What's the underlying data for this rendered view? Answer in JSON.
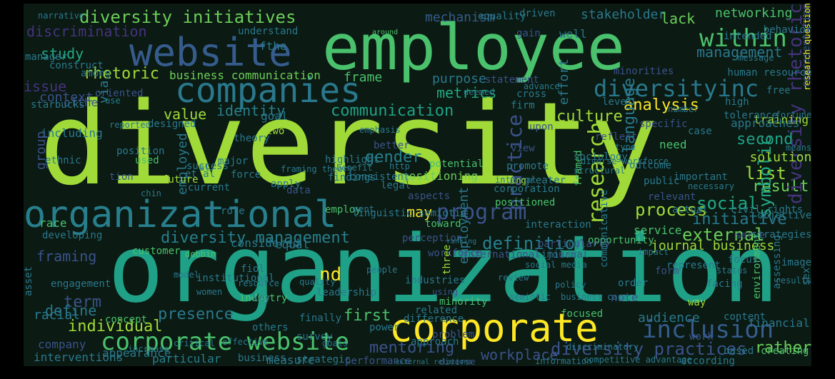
{
  "words": [
    {
      "text": "diversity",
      "color": "#a0da39"
    },
    {
      "text": "organization",
      "color": "#1fa187"
    },
    {
      "text": "employee",
      "color": "#4ac16d"
    },
    {
      "text": "organizational",
      "color": "#277f8e"
    },
    {
      "text": "website",
      "color": "#365c8d"
    },
    {
      "text": "companies",
      "color": "#2a788e"
    },
    {
      "text": "corporate",
      "color": "#fde725"
    },
    {
      "text": "corporate website",
      "color": "#4ac16d"
    },
    {
      "text": "diversity initiatives",
      "color": "#6ccd5a"
    },
    {
      "text": "within",
      "color": "#4ac16d"
    },
    {
      "text": "diversityinc",
      "color": "#2a788e"
    },
    {
      "text": "program",
      "color": "#3b528b"
    },
    {
      "text": "inclusion",
      "color": "#365c8d"
    },
    {
      "text": "diversity management",
      "color": "#277f8e"
    },
    {
      "text": "diversity practices",
      "color": "#3b528b"
    },
    {
      "text": "rhetoric",
      "color": "#a0da39"
    },
    {
      "text": "communication",
      "color": "#1fa187"
    },
    {
      "text": "culture",
      "color": "#a0da39"
    },
    {
      "text": "analysis",
      "color": "#fde725"
    },
    {
      "text": "discrimination",
      "color": "#46337e"
    },
    {
      "text": "study",
      "color": "#22a884"
    },
    {
      "text": "management",
      "color": "#2a788e"
    },
    {
      "text": "networking",
      "color": "#4ac16d"
    },
    {
      "text": "stakeholder",
      "color": "#2a788e"
    },
    {
      "text": "mechanism",
      "color": "#365c8d"
    },
    {
      "text": "lack",
      "color": "#6ccd5a"
    },
    {
      "text": "process",
      "color": "#a0da39"
    },
    {
      "text": "social",
      "color": "#22a884"
    },
    {
      "text": "external",
      "color": "#6ccd5a"
    },
    {
      "text": "list",
      "color": "#a0da39"
    },
    {
      "text": "result",
      "color": "#6ccd5a"
    },
    {
      "text": "second",
      "color": "#1fa187"
    },
    {
      "text": "initiative",
      "color": "#2a788e"
    },
    {
      "text": "definition",
      "color": "#277f8e"
    },
    {
      "text": "journal business",
      "color": "#a0da39"
    },
    {
      "text": "gender",
      "color": "#277f8e"
    },
    {
      "text": "framing",
      "color": "#3b528b"
    },
    {
      "text": "presence",
      "color": "#2a788e"
    },
    {
      "text": "individual",
      "color": "#a0da39"
    },
    {
      "text": "mentoring",
      "color": "#3b528b"
    },
    {
      "text": "first",
      "color": "#4ac16d"
    },
    {
      "text": "term",
      "color": "#3b528b"
    },
    {
      "text": "define",
      "color": "#2a788e"
    },
    {
      "text": "audience",
      "color": "#2a788e"
    },
    {
      "text": "workplace",
      "color": "#3b528b"
    },
    {
      "text": "rather",
      "color": "#6ccd5a"
    },
    {
      "text": "interventions",
      "color": "#2a788e"
    },
    {
      "text": "business communication",
      "color": "#6ccd5a"
    },
    {
      "text": "value",
      "color": "#a0da39"
    },
    {
      "text": "identity",
      "color": "#277f8e"
    },
    {
      "text": "metrics",
      "color": "#22a884"
    },
    {
      "text": "frame",
      "color": "#4ac16d"
    },
    {
      "text": "purpose",
      "color": "#2a788e"
    },
    {
      "text": "issue",
      "color": "#46337e"
    },
    {
      "text": "context",
      "color": "#3b528b"
    },
    {
      "text": "research",
      "color": "#a0da39"
    },
    {
      "text": "symbolic",
      "color": "#22a884"
    },
    {
      "text": "practice",
      "color": "#3b528b"
    },
    {
      "text": "diversity rhetoric",
      "color": "#46337e"
    },
    {
      "text": "may",
      "color": "#fde725"
    },
    {
      "text": "solution",
      "color": "#a0da39"
    },
    {
      "text": "training",
      "color": "#a0da39"
    },
    {
      "text": "approaches",
      "color": "#2a788e"
    },
    {
      "text": "positioning",
      "color": "#6ccd5a"
    },
    {
      "text": "including",
      "color": "#2a788e"
    },
    {
      "text": "group",
      "color": "#3b528b"
    },
    {
      "text": "designed",
      "color": "#2a788e"
    },
    {
      "text": "employed",
      "color": "#2a788e"
    },
    {
      "text": "potential",
      "color": "#4ac16d"
    },
    {
      "text": "considered",
      "color": "#2a788e"
    },
    {
      "text": "toward",
      "color": "#4ac16d"
    },
    {
      "text": "equal",
      "color": "#2a788e"
    },
    {
      "text": "nd",
      "color": "#fde725"
    },
    {
      "text": "industries",
      "color": "#2a788e"
    },
    {
      "text": "customer",
      "color": "#4ac16d"
    },
    {
      "text": "tolerance",
      "color": "#2a788e"
    },
    {
      "text": "company",
      "color": "#3b528b"
    },
    {
      "text": "appearance",
      "color": "#2a788e"
    },
    {
      "text": "engagement",
      "color": "#2a788e"
    },
    {
      "text": "racial",
      "color": "#2a788e"
    },
    {
      "text": "concept",
      "color": "#4ac16d"
    },
    {
      "text": "particular",
      "color": "#277f8e"
    },
    {
      "text": "business",
      "color": "#2a788e"
    },
    {
      "text": "measure",
      "color": "#2a788e"
    },
    {
      "text": "strategic",
      "color": "#2a788e"
    },
    {
      "text": "performance",
      "color": "#3b528b"
    },
    {
      "text": "diverse",
      "color": "#3b528b"
    },
    {
      "text": "information",
      "color": "#2a788e"
    },
    {
      "text": "according",
      "color": "#2a788e"
    },
    {
      "text": "based",
      "color": "#2a788e"
    },
    {
      "text": "creating",
      "color": "#4ac16d"
    },
    {
      "text": "financial",
      "color": "#2a788e"
    },
    {
      "text": "content",
      "color": "#2a788e"
    },
    {
      "text": "note",
      "color": "#3b528b"
    },
    {
      "text": "focused",
      "color": "#4ac16d"
    },
    {
      "text": "difference",
      "color": "#2a788e"
    },
    {
      "text": "power",
      "color": "#2a788e"
    },
    {
      "text": "survey",
      "color": "#2a788e"
    },
    {
      "text": "related",
      "color": "#2a788e"
    },
    {
      "text": "minority",
      "color": "#4ac16d"
    },
    {
      "text": "using",
      "color": "#3b528b"
    },
    {
      "text": "employment",
      "color": "#2a788e"
    },
    {
      "text": "human resource",
      "color": "#2a788e"
    },
    {
      "text": "minorities",
      "color": "#3b528b"
    },
    {
      "text": "representation",
      "color": "#3b528b"
    },
    {
      "text": "research question",
      "color": "#fde725"
    },
    {
      "text": "sex",
      "color": "#2a788e"
    },
    {
      "text": "public",
      "color": "#2a788e"
    },
    {
      "text": "need",
      "color": "#4ac16d"
    },
    {
      "text": "relevant",
      "color": "#3b528b"
    },
    {
      "text": "framed",
      "color": "#4ac16d"
    },
    {
      "text": "service",
      "color": "#4ac16d"
    },
    {
      "text": "opportunity",
      "color": "#4ac16d"
    },
    {
      "text": "serve",
      "color": "#3b528b"
    },
    {
      "text": "strategies",
      "color": "#2a788e"
    },
    {
      "text": "equality",
      "color": "#2a788e"
    },
    {
      "text": "narrative",
      "color": "#2a788e"
    },
    {
      "text": "understand",
      "color": "#2a788e"
    },
    {
      "text": "around",
      "color": "#4ac16d"
    },
    {
      "text": "construct",
      "color": "#2a788e"
    },
    {
      "text": "oriented",
      "color": "#3b528b"
    },
    {
      "text": "use",
      "color": "#277f8e"
    },
    {
      "text": "effort",
      "color": "#2a788e"
    },
    {
      "text": "upon",
      "color": "#3b528b"
    },
    {
      "text": "two",
      "color": "#a0da39"
    },
    {
      "text": "via",
      "color": "#2a788e"
    },
    {
      "text": "position",
      "color": "#2a788e"
    },
    {
      "text": "success",
      "color": "#2a788e"
    },
    {
      "text": "future",
      "color": "#a0da39"
    },
    {
      "text": "current",
      "color": "#2a788e"
    },
    {
      "text": "data",
      "color": "#3b528b"
    },
    {
      "text": "findings",
      "color": "#2a788e"
    },
    {
      "text": "legal",
      "color": "#2a788e"
    },
    {
      "text": "aspects",
      "color": "#3b528b"
    },
    {
      "text": "corporation",
      "color": "#2a788e"
    },
    {
      "text": "positioned",
      "color": "#4ac16d"
    },
    {
      "text": "employ",
      "color": "#4ac16d"
    },
    {
      "text": "linguistic semiotic",
      "color": "#2a788e"
    },
    {
      "text": "perception",
      "color": "#3b528b"
    },
    {
      "text": "ranking",
      "color": "#2a788e"
    },
    {
      "text": "particularly",
      "color": "#3b528b"
    },
    {
      "text": "workforce",
      "color": "#3b528b"
    },
    {
      "text": "international journal",
      "color": "#3b528b"
    },
    {
      "text": "similar",
      "color": "#2a788e"
    },
    {
      "text": "race",
      "color": "#4ac16d"
    },
    {
      "text": "developing",
      "color": "#2a788e"
    },
    {
      "text": "dobbin",
      "color": "#4ac16d"
    },
    {
      "text": "asset",
      "color": "#2a788e"
    },
    {
      "text": "institutional",
      "color": "#2a788e"
    },
    {
      "text": "industry",
      "color": "#4ac16d"
    },
    {
      "text": "leadership",
      "color": "#2a788e"
    },
    {
      "text": "approach",
      "color": "#2a788e"
    },
    {
      "text": "communicative",
      "color": "#2a788e"
    },
    {
      "text": "problem",
      "color": "#3b528b"
    },
    {
      "text": "three",
      "color": "#a0da39"
    },
    {
      "text": "language",
      "color": "#2a788e"
    },
    {
      "text": "promote",
      "color": "#2a788e"
    },
    {
      "text": "greater",
      "color": "#2a788e"
    },
    {
      "text": "internal",
      "color": "#2a788e"
    },
    {
      "text": "better",
      "color": "#3b528b"
    },
    {
      "text": "actual",
      "color": "#2a788e"
    },
    {
      "text": "civil rights",
      "color": "#2a788e"
    },
    {
      "text": "objective",
      "color": "#2a788e"
    },
    {
      "text": "environment",
      "color": "#4ac16d"
    },
    {
      "text": "assessing",
      "color": "#2a788e"
    },
    {
      "text": "way",
      "color": "#a0da39"
    },
    {
      "text": "firm",
      "color": "#2a788e"
    },
    {
      "text": "gain",
      "color": "#3b528b"
    },
    {
      "text": "well",
      "color": "#2a788e"
    },
    {
      "text": "intended",
      "color": "#2a788e"
    },
    {
      "text": "behavior",
      "color": "#2a788e"
    },
    {
      "text": "free",
      "color": "#2a788e"
    },
    {
      "text": "specific",
      "color": "#3b528b"
    },
    {
      "text": "high",
      "color": "#2a788e"
    },
    {
      "text": "reflect",
      "color": "#3b528b"
    },
    {
      "text": "type",
      "color": "#2a788e"
    },
    {
      "text": "driven",
      "color": "#2a788e"
    },
    {
      "text": "among",
      "color": "#2a788e"
    },
    {
      "text": "manager",
      "color": "#2a788e"
    },
    {
      "text": "force",
      "color": "#2a788e"
    },
    {
      "text": "fiol",
      "color": "#2a788e"
    },
    {
      "text": "ing",
      "color": "#a0da39"
    },
    {
      "text": "ment",
      "color": "#2a788e"
    },
    {
      "text": "fthe",
      "color": "#2a788e"
    },
    {
      "text": "ofthe",
      "color": "#3b528b"
    },
    {
      "text": "ethnic",
      "color": "#2a788e"
    },
    {
      "text": "used",
      "color": "#4ac16d"
    },
    {
      "text": "tion",
      "color": "#3b528b"
    },
    {
      "text": "role",
      "color": "#2a788e"
    },
    {
      "text": "goal",
      "color": "#2a788e"
    },
    {
      "text": "view",
      "color": "#3b528b"
    },
    {
      "text": "level",
      "color": "#2a788e"
    },
    {
      "text": "case",
      "color": "#2a788e"
    },
    {
      "text": "work",
      "color": "#3b528b"
    },
    {
      "text": "image",
      "color": "#2a788e"
    },
    {
      "text": "focus",
      "color": "#2a788e"
    },
    {
      "text": "order",
      "color": "#2a788e"
    },
    {
      "text": "form",
      "color": "#3b528b"
    },
    {
      "text": "major",
      "color": "#2a788e"
    },
    {
      "text": "theory",
      "color": "#2a788e"
    },
    {
      "text": "key",
      "color": "#2a788e"
    },
    {
      "text": "finally",
      "color": "#2a788e"
    },
    {
      "text": "others",
      "color": "#2a788e"
    },
    {
      "text": "interaction",
      "color": "#2a788e"
    },
    {
      "text": "statement",
      "color": "#3b528b"
    },
    {
      "text": "advance",
      "color": "#2a788e"
    },
    {
      "text": "deemed",
      "color": "#2a788e"
    },
    {
      "text": "number",
      "color": "#2a788e"
    },
    {
      "text": "cross",
      "color": "#2a788e"
    },
    {
      "text": "starbucks",
      "color": "#2a788e"
    },
    {
      "text": "al",
      "color": "#2a788e"
    },
    {
      "text": "et al",
      "color": "#2a788e"
    },
    {
      "text": "chin",
      "color": "#2a788e"
    },
    {
      "text": "apply",
      "color": "#2a788e"
    },
    {
      "text": "consistent",
      "color": "#2a788e"
    },
    {
      "text": "http",
      "color": "#2a788e"
    },
    {
      "text": "sociology",
      "color": "#2a788e"
    },
    {
      "text": "emphasis",
      "color": "#2a788e"
    },
    {
      "text": "benefit",
      "color": "#2a788e"
    },
    {
      "text": "highlight",
      "color": "#2a788e"
    },
    {
      "text": "framing theory",
      "color": "#2a788e"
    },
    {
      "text": "outcome",
      "color": "#2a788e"
    },
    {
      "text": "structural",
      "color": "#2a788e"
    },
    {
      "text": "discriminatory",
      "color": "#2a788e"
    },
    {
      "text": "external relations",
      "color": "#2a788e"
    },
    {
      "text": "increase",
      "color": "#2a788e"
    },
    {
      "text": "competitive advantage",
      "color": "#2a788e"
    },
    {
      "text": "diverse workforce",
      "color": "#2a788e"
    },
    {
      "text": "important",
      "color": "#2a788e"
    },
    {
      "text": "necessary",
      "color": "#2a788e"
    },
    {
      "text": "represent",
      "color": "#2a788e"
    },
    {
      "text": "status",
      "color": "#2a788e"
    },
    {
      "text": "facing",
      "color": "#2a788e"
    },
    {
      "text": "people",
      "color": "#2a788e"
    },
    {
      "text": "quality",
      "color": "#2a788e"
    },
    {
      "text": "women",
      "color": "#2a788e"
    },
    {
      "text": "model",
      "color": "#2a788e"
    },
    {
      "text": "resource",
      "color": "#2a788e"
    },
    {
      "text": "review",
      "color": "#2a788e"
    },
    {
      "text": "policy",
      "color": "#2a788e"
    },
    {
      "text": "impact",
      "color": "#2a788e"
    },
    {
      "text": "social media",
      "color": "#2a788e"
    },
    {
      "text": "semiotic",
      "color": "#2a788e"
    },
    {
      "text": "business case",
      "color": "#2a788e"
    },
    {
      "text": "message",
      "color": "#2a788e"
    },
    {
      "text": "critical",
      "color": "#2a788e"
    },
    {
      "text": "effective",
      "color": "#2a788e"
    },
    {
      "text": "goals",
      "color": "#2a788e"
    },
    {
      "text": "results",
      "color": "#2a788e"
    },
    {
      "text": "fortune",
      "color": "#2a788e"
    },
    {
      "text": "means",
      "color": "#2a788e"
    },
    {
      "text": "reported",
      "color": "#2a788e"
    }
  ]
}
